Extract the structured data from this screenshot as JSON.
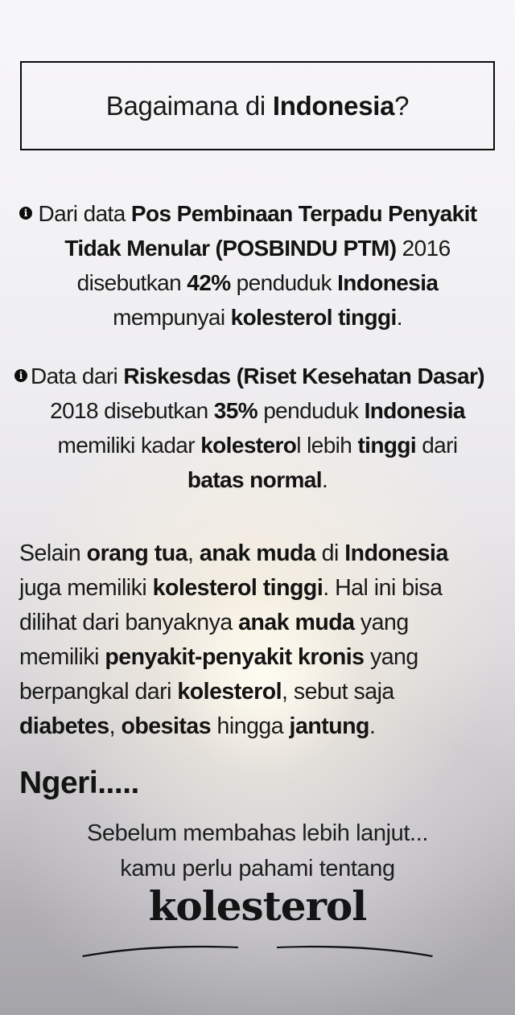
{
  "title": {
    "segments": [
      {
        "t": "Bagaimana di ",
        "b": 0
      },
      {
        "t": "Indonesia",
        "b": 1
      },
      {
        "t": "?",
        "b": 0
      }
    ]
  },
  "bullets": [
    {
      "icon": "info-icon",
      "icon_glyph": "i",
      "lines": [
        [
          {
            "t": "Dari data ",
            "b": 0
          },
          {
            "t": "Pos Pembinaan Terpadu Penyakit",
            "b": 1
          }
        ],
        [
          {
            "t": "Tidak Menular (POSBINDU PTM)",
            "b": 1
          },
          {
            "t": " 2016",
            "b": 0
          }
        ],
        [
          {
            "t": "disebutkan ",
            "b": 0
          },
          {
            "t": "42%",
            "b": 1
          },
          {
            "t": " penduduk ",
            "b": 0
          },
          {
            "t": "Indonesia",
            "b": 1
          }
        ],
        [
          {
            "t": "mempunyai ",
            "b": 0
          },
          {
            "t": "kolesterol tinggi",
            "b": 1
          },
          {
            "t": ".",
            "b": 0
          }
        ]
      ]
    },
    {
      "icon": "info-icon",
      "icon_glyph": "i",
      "lines": [
        [
          {
            "t": "Data dari ",
            "b": 0
          },
          {
            "t": "Riskesdas (Riset Kesehatan Dasar)",
            "b": 1
          }
        ],
        [
          {
            "t": "2018 disebutkan ",
            "b": 0
          },
          {
            "t": "35%",
            "b": 1
          },
          {
            "t": " penduduk ",
            "b": 0
          },
          {
            "t": "Indonesia",
            "b": 1
          }
        ],
        [
          {
            "t": "memiliki kadar ",
            "b": 0
          },
          {
            "t": "kolestero",
            "b": 1
          },
          {
            "t": "l lebih ",
            "b": 0
          },
          {
            "t": "tinggi",
            "b": 1
          },
          {
            "t": " dari",
            "b": 0
          }
        ],
        [
          {
            "t": "batas normal",
            "b": 1
          },
          {
            "t": ".",
            "b": 0
          }
        ]
      ]
    }
  ],
  "paragraph": {
    "lines": [
      [
        {
          "t": "Selain ",
          "b": 0
        },
        {
          "t": "orang tua",
          "b": 1
        },
        {
          "t": ", ",
          "b": 0
        },
        {
          "t": "anak muda",
          "b": 1
        },
        {
          "t": " di ",
          "b": 0
        },
        {
          "t": "Indonesia",
          "b": 1
        }
      ],
      [
        {
          "t": "juga memiliki ",
          "b": 0
        },
        {
          "t": "kolesterol tinggi",
          "b": 1
        },
        {
          "t": ". Hal ini bisa",
          "b": 0
        }
      ],
      [
        {
          "t": "dilihat dari banyaknya ",
          "b": 0
        },
        {
          "t": "anak muda",
          "b": 1
        },
        {
          "t": " yang",
          "b": 0
        }
      ],
      [
        {
          "t": "memiliki ",
          "b": 0
        },
        {
          "t": "penyakit-penyakit kronis",
          "b": 1
        },
        {
          "t": " yang",
          "b": 0
        }
      ],
      [
        {
          "t": "berpangkal dari ",
          "b": 0
        },
        {
          "t": "kolesterol",
          "b": 1
        },
        {
          "t": ", sebut saja",
          "b": 0
        }
      ],
      [
        {
          "t": "diabetes",
          "b": 1
        },
        {
          "t": ", ",
          "b": 0
        },
        {
          "t": "obesitas",
          "b": 1
        },
        {
          "t": " hingga ",
          "b": 0
        },
        {
          "t": "jantung",
          "b": 1
        },
        {
          "t": ".",
          "b": 0
        }
      ]
    ]
  },
  "ngeri": {
    "text": "Ngeri....."
  },
  "closing": {
    "line1": "Sebelum membahas lebih lanjut...",
    "line2": "kamu perlu pahami tentang",
    "big_word": "kolesterol"
  },
  "colors": {
    "text": "#1a1a1a",
    "border": "#0b0b0b",
    "background_top": "#f7f6f8",
    "background_bottom": "#a5a4a9",
    "glow_warm": "#fbf3e0",
    "divider": "#111111"
  }
}
